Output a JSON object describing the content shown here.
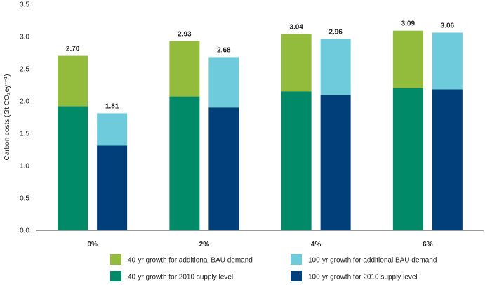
{
  "chart_data": {
    "type": "bar",
    "subtype": "grouped-stacked",
    "title": "",
    "xlabel": "",
    "ylabel": "Carbon costs (Gt CO₂eyr⁻¹)",
    "ylim": [
      0,
      3.5
    ],
    "yticks": [
      0.0,
      0.5,
      1.0,
      1.5,
      2.0,
      2.5,
      3.0,
      3.5
    ],
    "ytick_labels": [
      "0.0",
      "0.5",
      "1.0",
      "1.5",
      "2.0",
      "2.5",
      "3.0",
      "3.5"
    ],
    "grid": false,
    "legend_position": "bottom",
    "categories": [
      "0%",
      "2%",
      "4%",
      "6%"
    ],
    "groups": [
      {
        "name": "40-yr",
        "total_labels": [
          "2.70",
          "2.93",
          "3.04",
          "3.09"
        ],
        "series": [
          {
            "name": "40-yr growth for 2010 supply level",
            "color": "#008a68",
            "values": [
              1.92,
              2.07,
              2.15,
              2.2
            ]
          },
          {
            "name": "40-yr growth for additional BAU demand",
            "color": "#93bc3d",
            "values": [
              0.78,
              0.86,
              0.89,
              0.89
            ]
          }
        ]
      },
      {
        "name": "100-yr",
        "total_labels": [
          "1.81",
          "2.68",
          "2.96",
          "3.06"
        ],
        "series": [
          {
            "name": "100-yr growth for 2010 supply level",
            "color": "#003f7a",
            "values": [
              1.31,
              1.9,
              2.09,
              2.18
            ]
          },
          {
            "name": "100-yr growth for additional BAU demand",
            "color": "#6dcbdb",
            "values": [
              0.5,
              0.78,
              0.87,
              0.88
            ]
          }
        ]
      }
    ],
    "legend": [
      {
        "label": "40-yr growth for additional BAU demand",
        "color": "#93bc3d"
      },
      {
        "label": "100-yr growth for additional BAU demand",
        "color": "#6dcbdb"
      },
      {
        "label": "40-yr growth for 2010 supply level",
        "color": "#008a68"
      },
      {
        "label": "100-yr growth for 2010 supply level",
        "color": "#003f7a"
      }
    ]
  }
}
